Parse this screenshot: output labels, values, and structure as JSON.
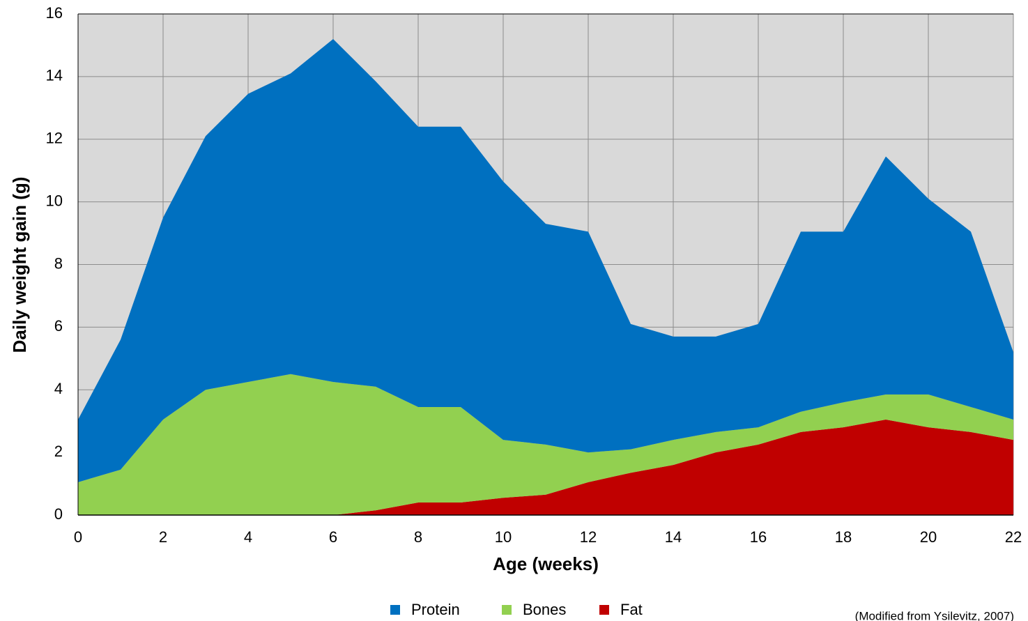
{
  "chart_data": {
    "type": "stacked_area",
    "x": [
      0,
      1,
      2,
      3,
      4,
      5,
      6,
      7,
      8,
      9,
      10,
      11,
      12,
      13,
      14,
      15,
      16,
      17,
      18,
      19,
      20,
      21,
      22
    ],
    "series": [
      {
        "name": "Protein",
        "color": "#0070c0",
        "values": [
          2.0,
          4.15,
          6.45,
          8.1,
          9.2,
          9.6,
          10.95,
          9.75,
          8.95,
          8.95,
          8.25,
          7.05,
          7.05,
          4.0,
          3.3,
          3.05,
          3.3,
          5.75,
          5.45,
          7.6,
          6.25,
          5.6,
          2.15
        ]
      },
      {
        "name": "Bones",
        "color": "#92d050",
        "values": [
          1.05,
          1.45,
          3.05,
          4.0,
          4.25,
          4.5,
          4.25,
          3.95,
          3.05,
          3.05,
          1.85,
          1.6,
          0.95,
          0.75,
          0.8,
          0.65,
          0.55,
          0.65,
          0.8,
          0.8,
          1.05,
          0.8,
          0.65
        ]
      },
      {
        "name": "Fat",
        "color": "#c00000",
        "values": [
          0,
          0,
          0,
          0,
          0,
          0,
          0,
          0.15,
          0.4,
          0.4,
          0.55,
          0.65,
          1.05,
          1.35,
          1.6,
          2.0,
          2.25,
          2.65,
          2.8,
          3.05,
          2.8,
          2.65,
          2.4
        ]
      }
    ],
    "xlabel": "Age (weeks)",
    "ylabel": "Daily weight gain (g)",
    "xlim": [
      0,
      22
    ],
    "xticks": [
      0,
      2,
      4,
      6,
      8,
      10,
      12,
      14,
      16,
      18,
      20,
      22
    ],
    "ylim": [
      0,
      16
    ],
    "yticks": [
      0,
      2,
      4,
      6,
      8,
      10,
      12,
      14,
      16
    ],
    "grid": true,
    "legend": "bottom",
    "note": "(Modified from Ysilevitz, 2007)"
  }
}
